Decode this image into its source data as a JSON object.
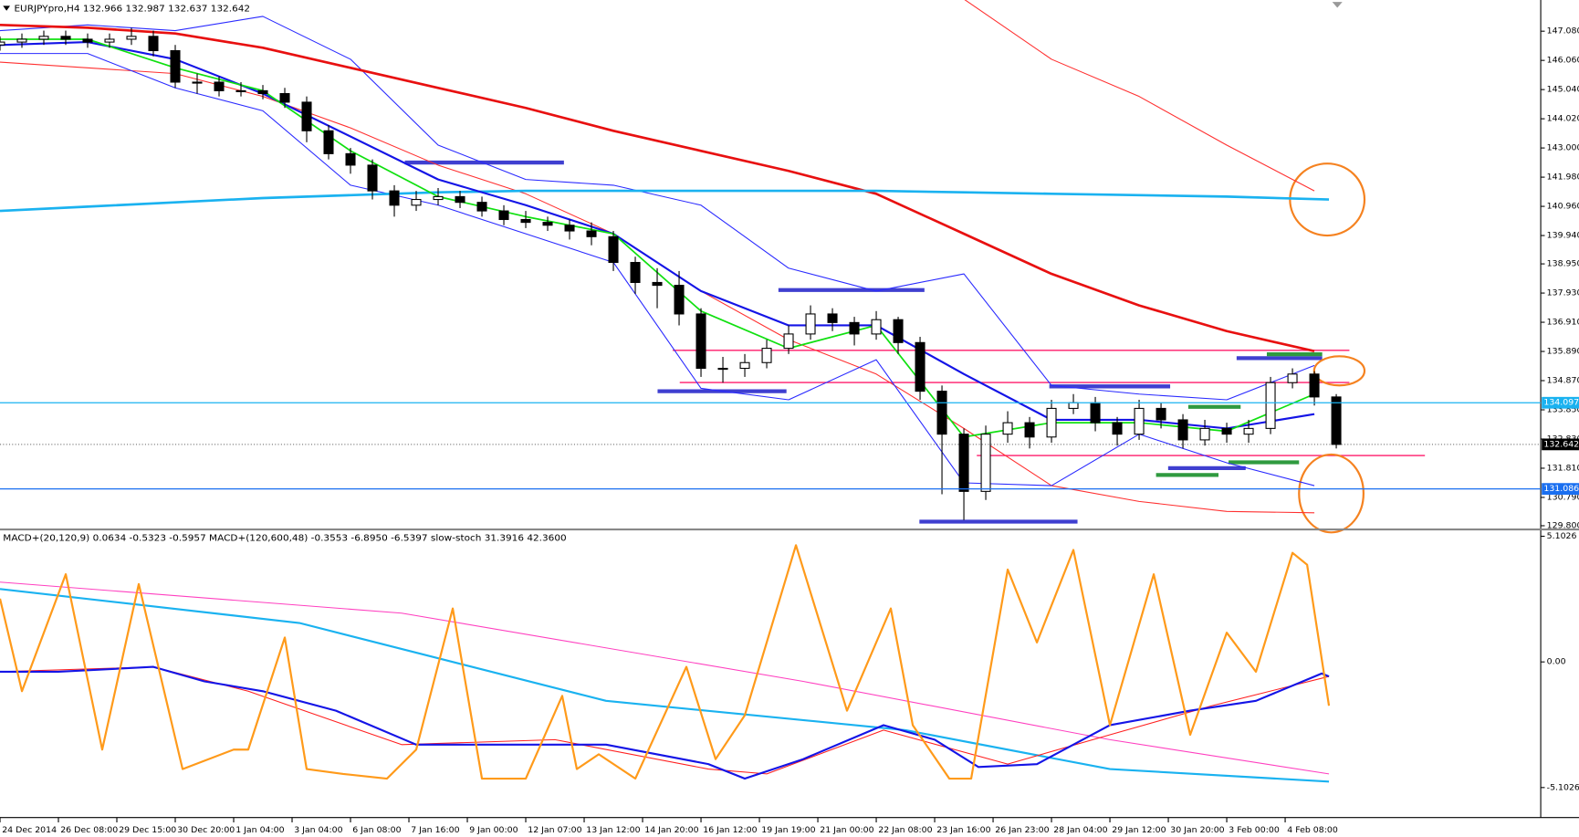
{
  "chart_data": [
    {
      "type": "candlestick",
      "title": "EURJPYpro,H4  132.966 132.987 132.637 132.642",
      "xlim": [
        0,
        211
      ],
      "ylim": [
        129.67,
        148.17
      ],
      "yticks": [
        {
          "value": 147.08,
          "label": "147.080"
        },
        {
          "value": 146.06,
          "label": "146.060"
        },
        {
          "value": 145.04,
          "label": "145.040"
        },
        {
          "value": 144.02,
          "label": "144.020"
        },
        {
          "value": 143,
          "label": "143.000"
        },
        {
          "value": 141.98,
          "label": "141.980"
        },
        {
          "value": 140.96,
          "label": "140.960"
        },
        {
          "value": 139.94,
          "label": "139.940"
        },
        {
          "value": 138.95,
          "label": "138.950"
        },
        {
          "value": 137.93,
          "label": "137.930"
        },
        {
          "value": 136.91,
          "label": "136.910"
        },
        {
          "value": 135.89,
          "label": "135.890"
        },
        {
          "value": 134.87,
          "label": "134.870"
        },
        {
          "value": 133.85,
          "label": "133.850"
        },
        {
          "value": 132.83,
          "label": "132.830"
        },
        {
          "value": 131.81,
          "label": "131.810"
        },
        {
          "value": 130.79,
          "label": "130.790"
        },
        {
          "value": 129.8,
          "label": "129.800"
        }
      ],
      "x": [
        0,
        3,
        6,
        9,
        12,
        15,
        18,
        21,
        24,
        27,
        30,
        33,
        36,
        39,
        42,
        45,
        48,
        51,
        54,
        57,
        60,
        63,
        66,
        69,
        72,
        75,
        78,
        81,
        84,
        87,
        90,
        93,
        96,
        99,
        102,
        105,
        108,
        111,
        114,
        117,
        120,
        123,
        126,
        129,
        132,
        135,
        138,
        141,
        144,
        147,
        150,
        153,
        156,
        159,
        162,
        165,
        168,
        171,
        174,
        177,
        180,
        183
      ],
      "open": [
        146.6,
        146.7,
        146.8,
        146.9,
        146.8,
        146.7,
        146.8,
        146.9,
        146.4,
        145.3,
        145.3,
        145.0,
        145.0,
        144.9,
        144.6,
        143.6,
        142.8,
        142.4,
        141.5,
        141.0,
        141.2,
        141.3,
        141.1,
        140.8,
        140.5,
        140.4,
        140.3,
        140.1,
        139.9,
        139.0,
        138.3,
        138.2,
        137.2,
        135.3,
        135.3,
        135.5,
        136.0,
        136.5,
        137.2,
        136.9,
        136.5,
        137.0,
        136.2,
        134.5,
        133.0,
        131.0,
        133.0,
        133.4,
        132.9,
        133.9,
        134.1,
        133.4,
        133.0,
        133.9,
        133.5,
        132.8,
        133.2,
        133.0,
        133.2,
        134.8,
        135.1,
        134.3
      ],
      "high": [
        146.9,
        147.0,
        147.1,
        147.1,
        147.0,
        147.0,
        147.2,
        147.1,
        146.6,
        145.6,
        145.5,
        145.3,
        145.2,
        145.1,
        144.8,
        143.8,
        143.0,
        142.6,
        141.7,
        141.5,
        141.6,
        141.5,
        141.3,
        141.0,
        140.8,
        140.6,
        140.5,
        140.4,
        140.1,
        139.2,
        138.8,
        138.7,
        137.4,
        135.7,
        135.8,
        136.3,
        136.8,
        137.5,
        137.4,
        137.1,
        137.3,
        137.1,
        136.4,
        134.7,
        133.2,
        133.3,
        133.8,
        133.6,
        134.2,
        134.4,
        134.3,
        133.6,
        134.2,
        134.1,
        133.7,
        133.5,
        133.4,
        133.5,
        135.0,
        135.3,
        135.2,
        134.4
      ],
      "low": [
        146.4,
        146.5,
        146.6,
        146.6,
        146.5,
        146.5,
        146.6,
        146.2,
        145.1,
        144.9,
        144.8,
        144.8,
        144.7,
        144.4,
        143.2,
        142.6,
        142.1,
        141.2,
        140.6,
        140.8,
        141.0,
        140.9,
        140.6,
        140.3,
        140.2,
        140.1,
        139.8,
        139.6,
        138.7,
        137.9,
        137.4,
        136.8,
        135.0,
        134.8,
        135.0,
        135.3,
        135.8,
        136.3,
        136.6,
        136.1,
        136.3,
        135.8,
        134.2,
        130.9,
        130.0,
        130.7,
        132.7,
        132.5,
        132.7,
        133.7,
        133.1,
        132.6,
        132.8,
        133.2,
        132.5,
        132.6,
        132.7,
        132.7,
        133.0,
        134.6,
        134.0,
        132.5
      ],
      "close": [
        146.7,
        146.8,
        146.9,
        146.8,
        146.7,
        146.8,
        146.9,
        146.4,
        145.3,
        145.3,
        145.0,
        145.0,
        144.9,
        144.6,
        143.6,
        142.8,
        142.4,
        141.5,
        141.0,
        141.2,
        141.3,
        141.1,
        140.8,
        140.5,
        140.4,
        140.3,
        140.1,
        139.9,
        139.0,
        138.3,
        138.2,
        137.2,
        135.3,
        135.3,
        135.5,
        136.0,
        136.5,
        137.2,
        136.9,
        136.5,
        137.0,
        136.2,
        134.5,
        133.0,
        131.0,
        133.0,
        133.4,
        132.9,
        133.9,
        134.1,
        133.4,
        133.0,
        133.9,
        133.5,
        132.8,
        133.2,
        133.0,
        133.2,
        134.8,
        135.1,
        134.3,
        132.642
      ],
      "series": [
        {
          "color": "#ff3030",
          "width": 1,
          "x": [
            0,
            12,
            24,
            36,
            48,
            60,
            72,
            84,
            96,
            108,
            120,
            132,
            144,
            156,
            168,
            180
          ],
          "values": [
            null,
            null,
            null,
            null,
            null,
            null,
            null,
            null,
            null,
            null,
            null,
            148.2,
            146.1,
            144.8,
            143.1,
            141.5
          ]
        },
        {
          "color": "#ff3030",
          "width": 1,
          "x": [
            0,
            12,
            24,
            36,
            48,
            60,
            72,
            84,
            96,
            108,
            120,
            132,
            144,
            156,
            168,
            180
          ],
          "values": [
            146.0,
            145.8,
            145.6,
            144.8,
            143.7,
            142.4,
            141.4,
            140.0,
            138.0,
            136.3,
            135.1,
            133.2,
            131.2,
            130.65,
            130.3,
            130.25
          ]
        },
        {
          "color": "#2a2aff",
          "width": 1,
          "x": [
            0,
            12,
            24,
            36,
            48,
            60,
            72,
            84,
            96,
            108,
            120,
            132,
            144,
            156,
            168,
            180
          ],
          "values": [
            147.1,
            147.3,
            147.1,
            147.6,
            146.1,
            143.1,
            141.9,
            141.7,
            141.0,
            138.8,
            138.0,
            138.6,
            134.7,
            134.4,
            134.2,
            135.4
          ]
        },
        {
          "color": "#2a2aff",
          "width": 1,
          "x": [
            0,
            12,
            24,
            36,
            48,
            60,
            72,
            84,
            96,
            108,
            120,
            132,
            144,
            156,
            168,
            180
          ],
          "values": [
            146.3,
            146.3,
            145.1,
            144.3,
            141.7,
            141.0,
            140.0,
            139.0,
            134.6,
            134.2,
            135.6,
            131.3,
            131.2,
            133.0,
            132.0,
            131.2
          ]
        },
        {
          "color": "#e81010",
          "width": 2.5,
          "x": [
            0,
            12,
            24,
            36,
            48,
            60,
            72,
            84,
            96,
            108,
            120,
            132,
            144,
            156,
            168,
            180
          ],
          "values": [
            147.3,
            147.2,
            147.0,
            146.5,
            145.8,
            145.1,
            144.4,
            143.6,
            142.9,
            142.2,
            141.4,
            140.0,
            138.6,
            137.5,
            136.6,
            135.9
          ]
        },
        {
          "color": "#1ab2f0",
          "width": 2.5,
          "x": [
            0,
            12,
            24,
            36,
            48,
            60,
            72,
            84,
            96,
            108,
            120,
            132,
            144,
            156,
            168,
            182
          ],
          "values": [
            140.8,
            140.95,
            141.1,
            141.25,
            141.35,
            141.45,
            141.5,
            141.5,
            141.5,
            141.5,
            141.5,
            141.45,
            141.4,
            141.35,
            141.3,
            141.2
          ]
        },
        {
          "color": "#1414e6",
          "width": 2,
          "x": [
            0,
            12,
            24,
            36,
            48,
            60,
            72,
            84,
            96,
            108,
            120,
            132,
            144,
            156,
            168,
            180
          ],
          "values": [
            146.6,
            146.7,
            146.1,
            144.9,
            143.4,
            141.9,
            141.0,
            140.0,
            138.0,
            136.8,
            136.8,
            135.1,
            133.5,
            133.5,
            133.2,
            133.7
          ]
        },
        {
          "color": "#10e010",
          "width": 1.6,
          "x": [
            0,
            12,
            24,
            36,
            48,
            60,
            72,
            84,
            96,
            108,
            120,
            132,
            144,
            156,
            168,
            180
          ],
          "values": [
            146.8,
            146.8,
            145.8,
            145.0,
            142.9,
            141.3,
            140.6,
            140.0,
            137.3,
            136.0,
            136.8,
            132.9,
            133.4,
            133.4,
            133.1,
            134.4
          ]
        }
      ],
      "price_labels": [
        {
          "value": 134.097,
          "color": "#1ab2f0"
        },
        {
          "value": 132.642,
          "color": "#000000"
        },
        {
          "value": 131.086,
          "color": "#1a6ff0"
        }
      ]
    },
    {
      "type": "line",
      "title": "MACD+(20,120,9) 0.0634 -0.5323 -0.5957  MACD+(120,600,48) -0.3553 -6.8950 -6.5397  slow-stoch 31.3916 42.3600",
      "xlim": [
        0,
        211
      ],
      "ylim": [
        -6.32,
        5.3
      ],
      "yticks": [
        5.1026,
        {
          "value": 0,
          "label": "0.00"
        },
        -5.1026
      ],
      "xticks": [
        {
          "value": 0,
          "label": "24 Dec 2014"
        },
        {
          "value": 8,
          "label": "26 Dec 08:00"
        },
        {
          "value": 16,
          "label": "29 Dec 15:00"
        },
        {
          "value": 24,
          "label": "30 Dec 20:00"
        },
        {
          "value": 32,
          "label": "1 Jan 04:00"
        },
        {
          "value": 40,
          "label": "3 Jan 04:00"
        },
        {
          "value": 48,
          "label": "6 Jan 08:00"
        },
        {
          "value": 56,
          "label": "7 Jan 16:00"
        },
        {
          "value": 64,
          "label": "9 Jan 00:00"
        },
        {
          "value": 72,
          "label": "12 Jan 07:00"
        },
        {
          "value": 80,
          "label": "13 Jan 12:00"
        },
        {
          "value": 88,
          "label": "14 Jan 20:00"
        },
        {
          "value": 96,
          "label": "16 Jan 12:00"
        },
        {
          "value": 104,
          "label": "19 Jan 19:00"
        },
        {
          "value": 112,
          "label": "21 Jan 00:00"
        },
        {
          "value": 120,
          "label": "22 Jan 08:00"
        },
        {
          "value": 128,
          "label": "23 Jan 16:00"
        },
        {
          "value": 136,
          "label": "26 Jan 23:00"
        },
        {
          "value": 144,
          "label": "28 Jan 04:00"
        },
        {
          "value": 152,
          "label": "29 Jan 12:00"
        },
        {
          "value": 160,
          "label": "30 Jan 20:00"
        },
        {
          "value": 168,
          "label": "3 Feb 00:00"
        },
        {
          "value": 176,
          "label": "4 Feb 08:00"
        }
      ],
      "series": [
        {
          "color": "#ff40c0",
          "width": 1,
          "x": [
            0,
            55,
            110,
            152,
            182
          ],
          "values": [
            3.24,
            1.98,
            -0.79,
            -3.16,
            -4.55
          ]
        },
        {
          "color": "#1ab2f0",
          "width": 2,
          "x": [
            0,
            41,
            83,
            124,
            152,
            182
          ],
          "values": [
            2.96,
            1.58,
            -1.58,
            -2.77,
            -4.35,
            -4.86
          ]
        },
        {
          "color": "#ff2020",
          "width": 1,
          "x": [
            0,
            21,
            34,
            55,
            76,
            97,
            105,
            121,
            138,
            152,
            166,
            182
          ],
          "values": [
            -0.4,
            -0.2,
            -1.19,
            -3.36,
            -3.16,
            -4.35,
            -4.55,
            -2.77,
            -4.15,
            -2.96,
            -1.78,
            -0.59
          ]
        },
        {
          "color": "#1414e6",
          "width": 2,
          "x": [
            0,
            8,
            21,
            28,
            36,
            46,
            57,
            69,
            83,
            97,
            102,
            110,
            121,
            128,
            134,
            142,
            152,
            163,
            172,
            181,
            182
          ],
          "values": [
            -0.4,
            -0.4,
            -0.2,
            -0.79,
            -1.19,
            -1.98,
            -3.36,
            -3.36,
            -3.36,
            -4.15,
            -4.74,
            -3.95,
            -2.57,
            -3.16,
            -4.27,
            -4.15,
            -2.57,
            -1.98,
            -1.58,
            -0.47,
            -0.59
          ]
        },
        {
          "color": "#ff9a1a",
          "width": 2,
          "x": [
            0,
            3,
            9,
            14,
            19,
            25,
            32,
            34,
            39,
            42,
            47,
            53,
            57,
            62,
            66,
            72,
            77,
            79,
            82,
            87,
            94,
            98,
            102,
            109,
            116,
            122,
            125,
            130,
            133,
            138,
            142,
            147,
            152,
            158,
            163,
            168,
            172,
            177,
            179,
            182
          ],
          "values": [
            2.57,
            -1.19,
            3.56,
            -3.56,
            3.16,
            -4.35,
            -3.56,
            -3.56,
            0.99,
            -4.35,
            -4.55,
            -4.74,
            -3.56,
            2.17,
            -4.74,
            -4.74,
            -1.38,
            -4.35,
            -3.75,
            -4.74,
            -0.2,
            -3.95,
            -2.17,
            4.74,
            -1.98,
            2.17,
            -2.57,
            -4.74,
            -4.74,
            3.75,
            0.79,
            4.55,
            -2.57,
            3.56,
            -2.96,
            1.19,
            -0.4,
            4.43,
            3.95,
            -1.78
          ]
        }
      ]
    }
  ]
}
